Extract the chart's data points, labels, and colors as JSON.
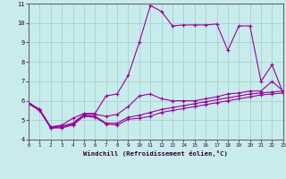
{
  "xlabel": "Windchill (Refroidissement éolien,°C)",
  "background_color": "#c8ecec",
  "grid_color": "#a8d0d0",
  "line_color": "#990099",
  "x_min": 0,
  "x_max": 23,
  "y_min": 4,
  "y_max": 11,
  "x_ticks": [
    0,
    1,
    2,
    3,
    4,
    5,
    6,
    7,
    8,
    9,
    10,
    11,
    12,
    13,
    14,
    15,
    16,
    17,
    18,
    19,
    20,
    21,
    22,
    23
  ],
  "y_ticks": [
    4,
    5,
    6,
    7,
    8,
    9,
    10,
    11
  ],
  "series": [
    [
      5.85,
      5.5,
      4.6,
      4.6,
      4.75,
      5.2,
      5.15,
      4.8,
      4.75,
      5.05,
      5.1,
      5.2,
      5.4,
      5.5,
      5.6,
      5.7,
      5.8,
      5.9,
      6.0,
      6.1,
      6.2,
      6.3,
      6.35,
      6.4
    ],
    [
      5.85,
      5.5,
      4.6,
      4.65,
      4.8,
      5.25,
      5.2,
      4.85,
      4.85,
      5.15,
      5.25,
      5.4,
      5.55,
      5.65,
      5.75,
      5.85,
      5.95,
      6.05,
      6.15,
      6.25,
      6.35,
      6.4,
      6.45,
      6.5
    ],
    [
      5.9,
      5.55,
      4.65,
      4.7,
      4.85,
      5.3,
      5.3,
      5.2,
      5.3,
      5.7,
      6.25,
      6.35,
      6.1,
      6.0,
      6.0,
      6.0,
      6.1,
      6.2,
      6.35,
      6.4,
      6.5,
      6.5,
      7.0,
      6.5
    ],
    [
      5.9,
      5.55,
      4.65,
      4.75,
      5.1,
      5.35,
      5.35,
      6.25,
      6.35,
      7.3,
      9.0,
      10.9,
      10.6,
      9.85,
      9.9,
      9.9,
      9.9,
      9.95,
      8.6,
      9.85,
      9.85,
      7.0,
      7.85,
      6.4
    ]
  ]
}
